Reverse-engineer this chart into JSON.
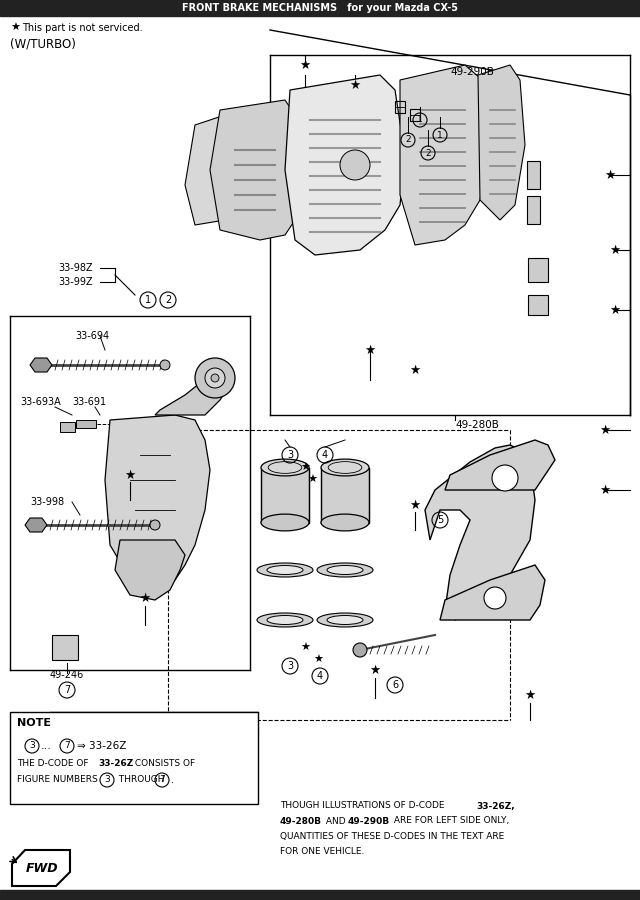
{
  "bg_color": "#ffffff",
  "header_bar_color": "#222222",
  "header_text_color": "#ffffff",
  "title": "FRONT BRAKE MECHANISMS",
  "subtitle": "for your Mazda CX-5",
  "star_note": "This part is not serviced.",
  "turbo_note": "(W/TURBO)",
  "bottom_text_line1": "THOUGH ILLUSTRATIONS OF D-CODE ",
  "bottom_text_bold1": "33-26Z,",
  "bottom_text_line2_a": "",
  "bottom_text_bold2a": "49-280B",
  "bottom_text_line2_b": " AND ",
  "bottom_text_bold2b": "49-290B",
  "bottom_text_line2_c": " ARE FOR LEFT SIDE ONLY,",
  "bottom_text_line3": "QUANTITIES OF THESE D-CODES IN THE TEXT ARE",
  "bottom_text_line4": "FOR ONE VEHICLE.",
  "note_line1_pre": "THE D-CODE OF ",
  "note_line1_bold": "33-26Z",
  "note_line1_post": " CONSISTS OF",
  "note_line2_pre": "FIGURE NUMBERS ",
  "note_line2_post": " THROUGH ",
  "note_line2_end": "."
}
